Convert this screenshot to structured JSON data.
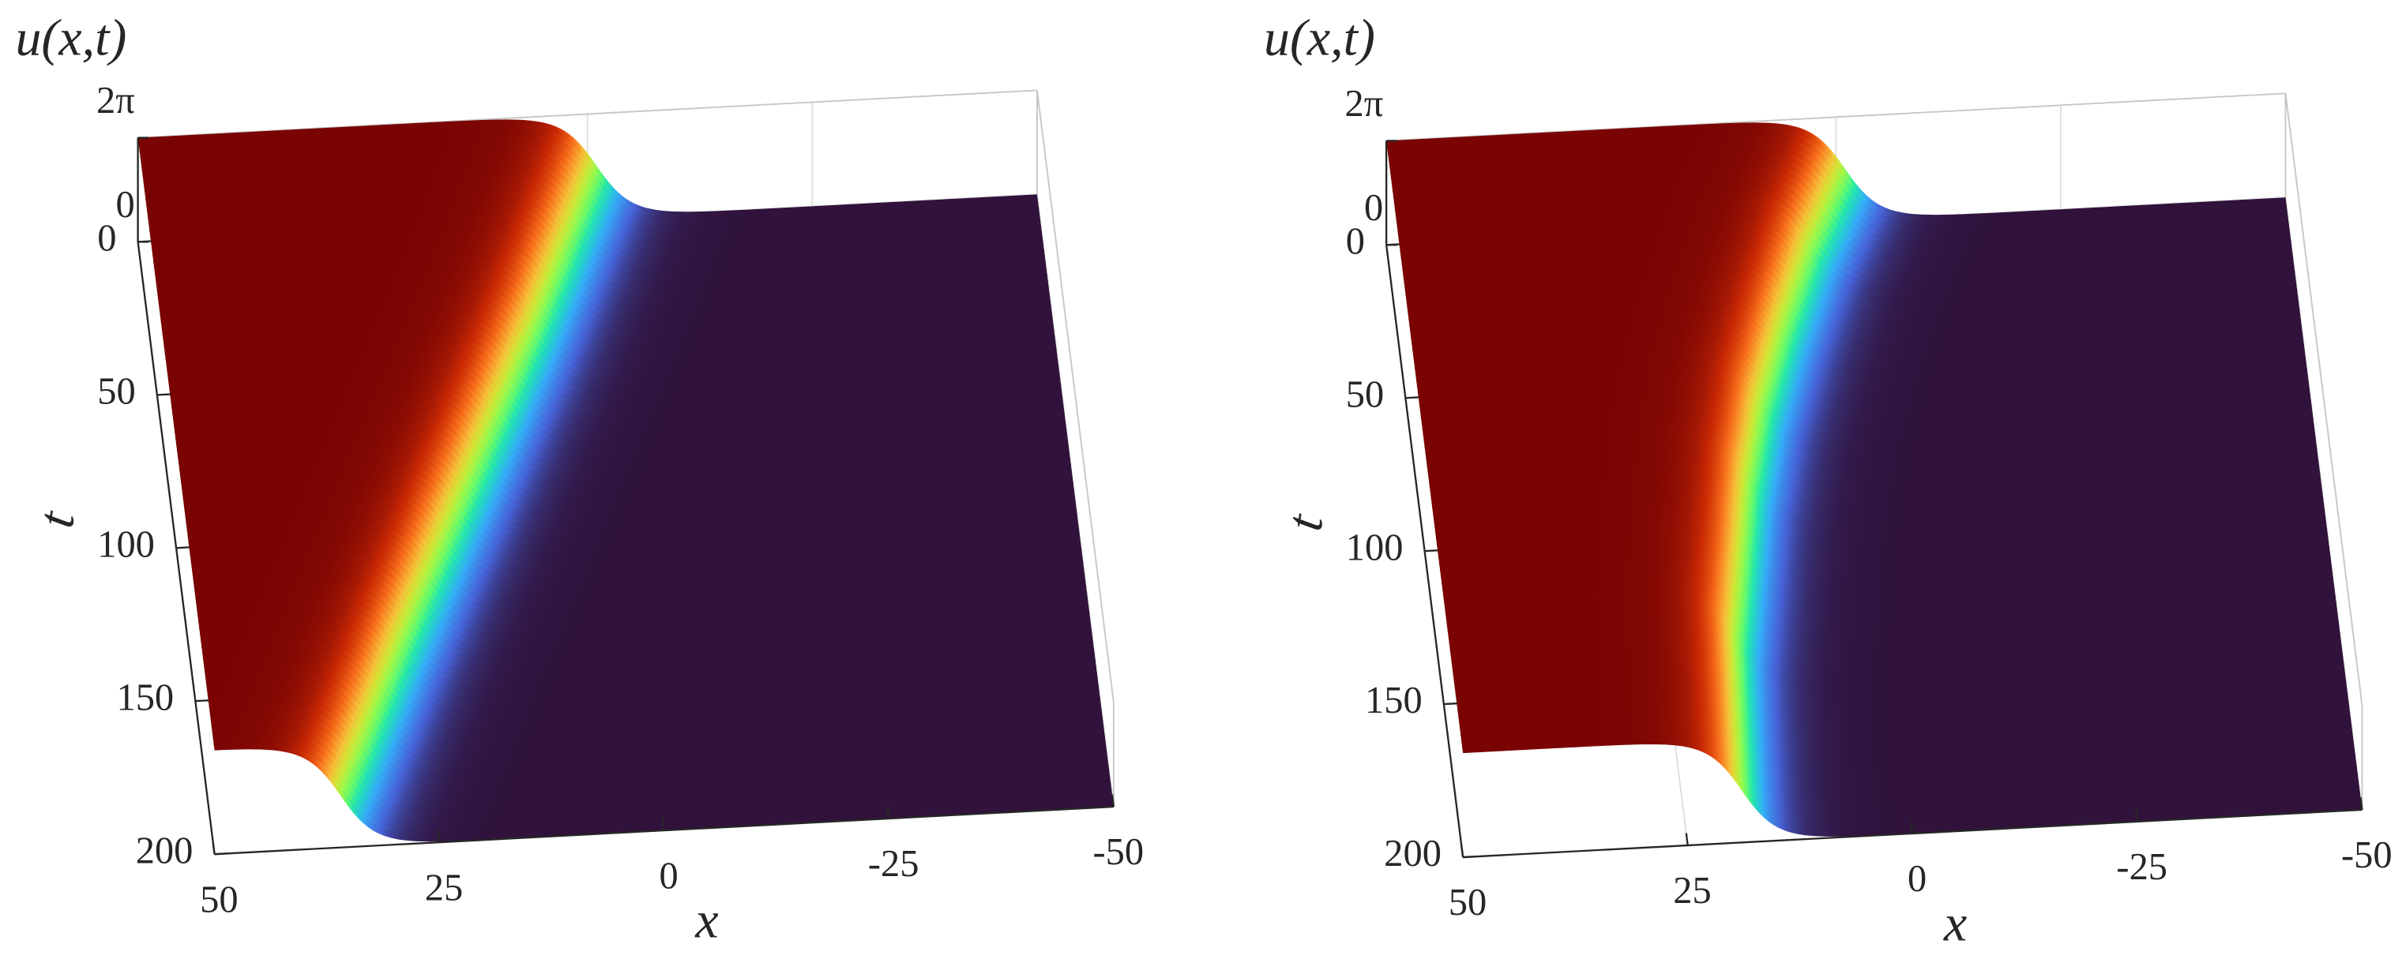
{
  "chart_data": [
    {
      "type": "surface",
      "zlabel": "u(x,t)",
      "xlabel": "x",
      "ylabel": "t",
      "xlim": [
        50,
        -50
      ],
      "ylim": [
        0,
        200
      ],
      "zlim": [
        0,
        6.283185307179586
      ],
      "xticks": [
        50,
        25,
        0,
        -25,
        -50
      ],
      "yticks": [
        0,
        50,
        100,
        150,
        200
      ],
      "zticks": [
        0,
        {
          "value": 6.283185307179586,
          "label": "2π"
        }
      ],
      "grid": true,
      "colormap": [
        "#30123b",
        "#4662d7",
        "#36aaf9",
        "#1ae4b6",
        "#72fe5e",
        "#c8ef34",
        "#faba39",
        "#f66b19",
        "#ca2a04",
        "#7a0403"
      ],
      "kink": {
        "t": [
          0,
          50,
          100,
          150,
          200
        ],
        "x": [
          -1,
          8,
          17.5,
          27,
          36
        ],
        "width": 2.5
      }
    },
    {
      "type": "surface",
      "zlabel": "u(x,t)",
      "xlabel": "x",
      "ylabel": "t",
      "xlim": [
        50,
        -50
      ],
      "ylim": [
        0,
        200
      ],
      "zlim": [
        0,
        6.283185307179586
      ],
      "xticks": [
        50,
        25,
        0,
        -25,
        -50
      ],
      "yticks": [
        0,
        50,
        100,
        150,
        200
      ],
      "zticks": [
        0,
        {
          "value": 6.283185307179586,
          "label": "2π"
        }
      ],
      "grid": true,
      "colormap": [
        "#30123b",
        "#4662d7",
        "#36aaf9",
        "#1ae4b6",
        "#72fe5e",
        "#c8ef34",
        "#faba39",
        "#f66b19",
        "#ca2a04",
        "#7a0403"
      ],
      "kink": {
        "t": [
          0,
          25,
          50,
          75,
          100,
          150,
          200
        ],
        "x": [
          -1,
          4,
          8,
          11.5,
          14,
          17.5,
          19
        ],
        "width": 2.5
      }
    }
  ]
}
